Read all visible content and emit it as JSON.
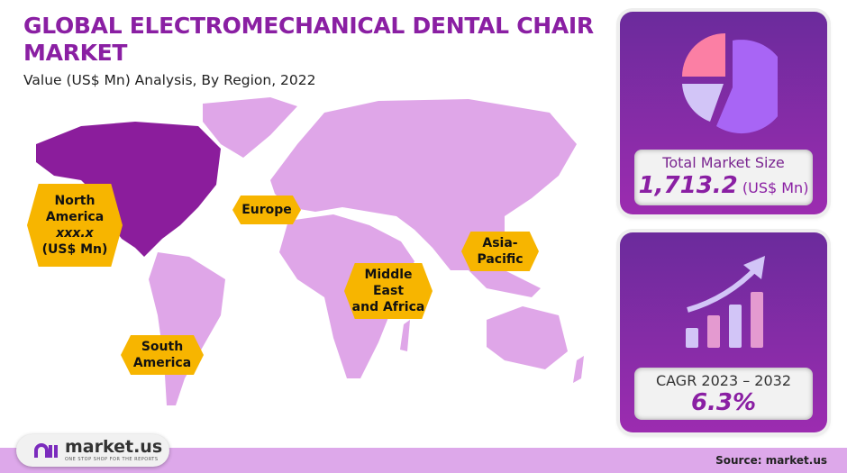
{
  "header": {
    "title": "GLOBAL ELECTROMECHANICAL DENTAL CHAIR MARKET",
    "subtitle": "Value (US$ Mn) Analysis, By Region, 2022"
  },
  "regions": {
    "north_america": {
      "line1": "North",
      "line2": "America",
      "value": "xxx.x",
      "unit": "(US$ Mn)"
    },
    "europe": "Europe",
    "asia_pacific": {
      "line1": "Asia-",
      "line2": "Pacific"
    },
    "mea": {
      "line1": "Middle",
      "line2": "East",
      "line3": "and Africa"
    },
    "south_america": {
      "line1": "South",
      "line2": "America"
    }
  },
  "market_size": {
    "label": "Total Market Size",
    "value": "1,713.2",
    "unit": "(US$ Mn)",
    "icon": "pie-chart-icon"
  },
  "cagr": {
    "label": "CAGR 2023 – 2032",
    "value": "6.3%",
    "icon": "growth-bar-chart-icon"
  },
  "footer": {
    "logo_text": "market.us",
    "tagline": "ONE STOP SHOP FOR THE REPORTS",
    "source": "Source: market.us"
  },
  "colors": {
    "accent": "#8a1fa3",
    "map": "#dfa6e8",
    "highlight": "#8b1d9c",
    "label": "#f7b500"
  }
}
